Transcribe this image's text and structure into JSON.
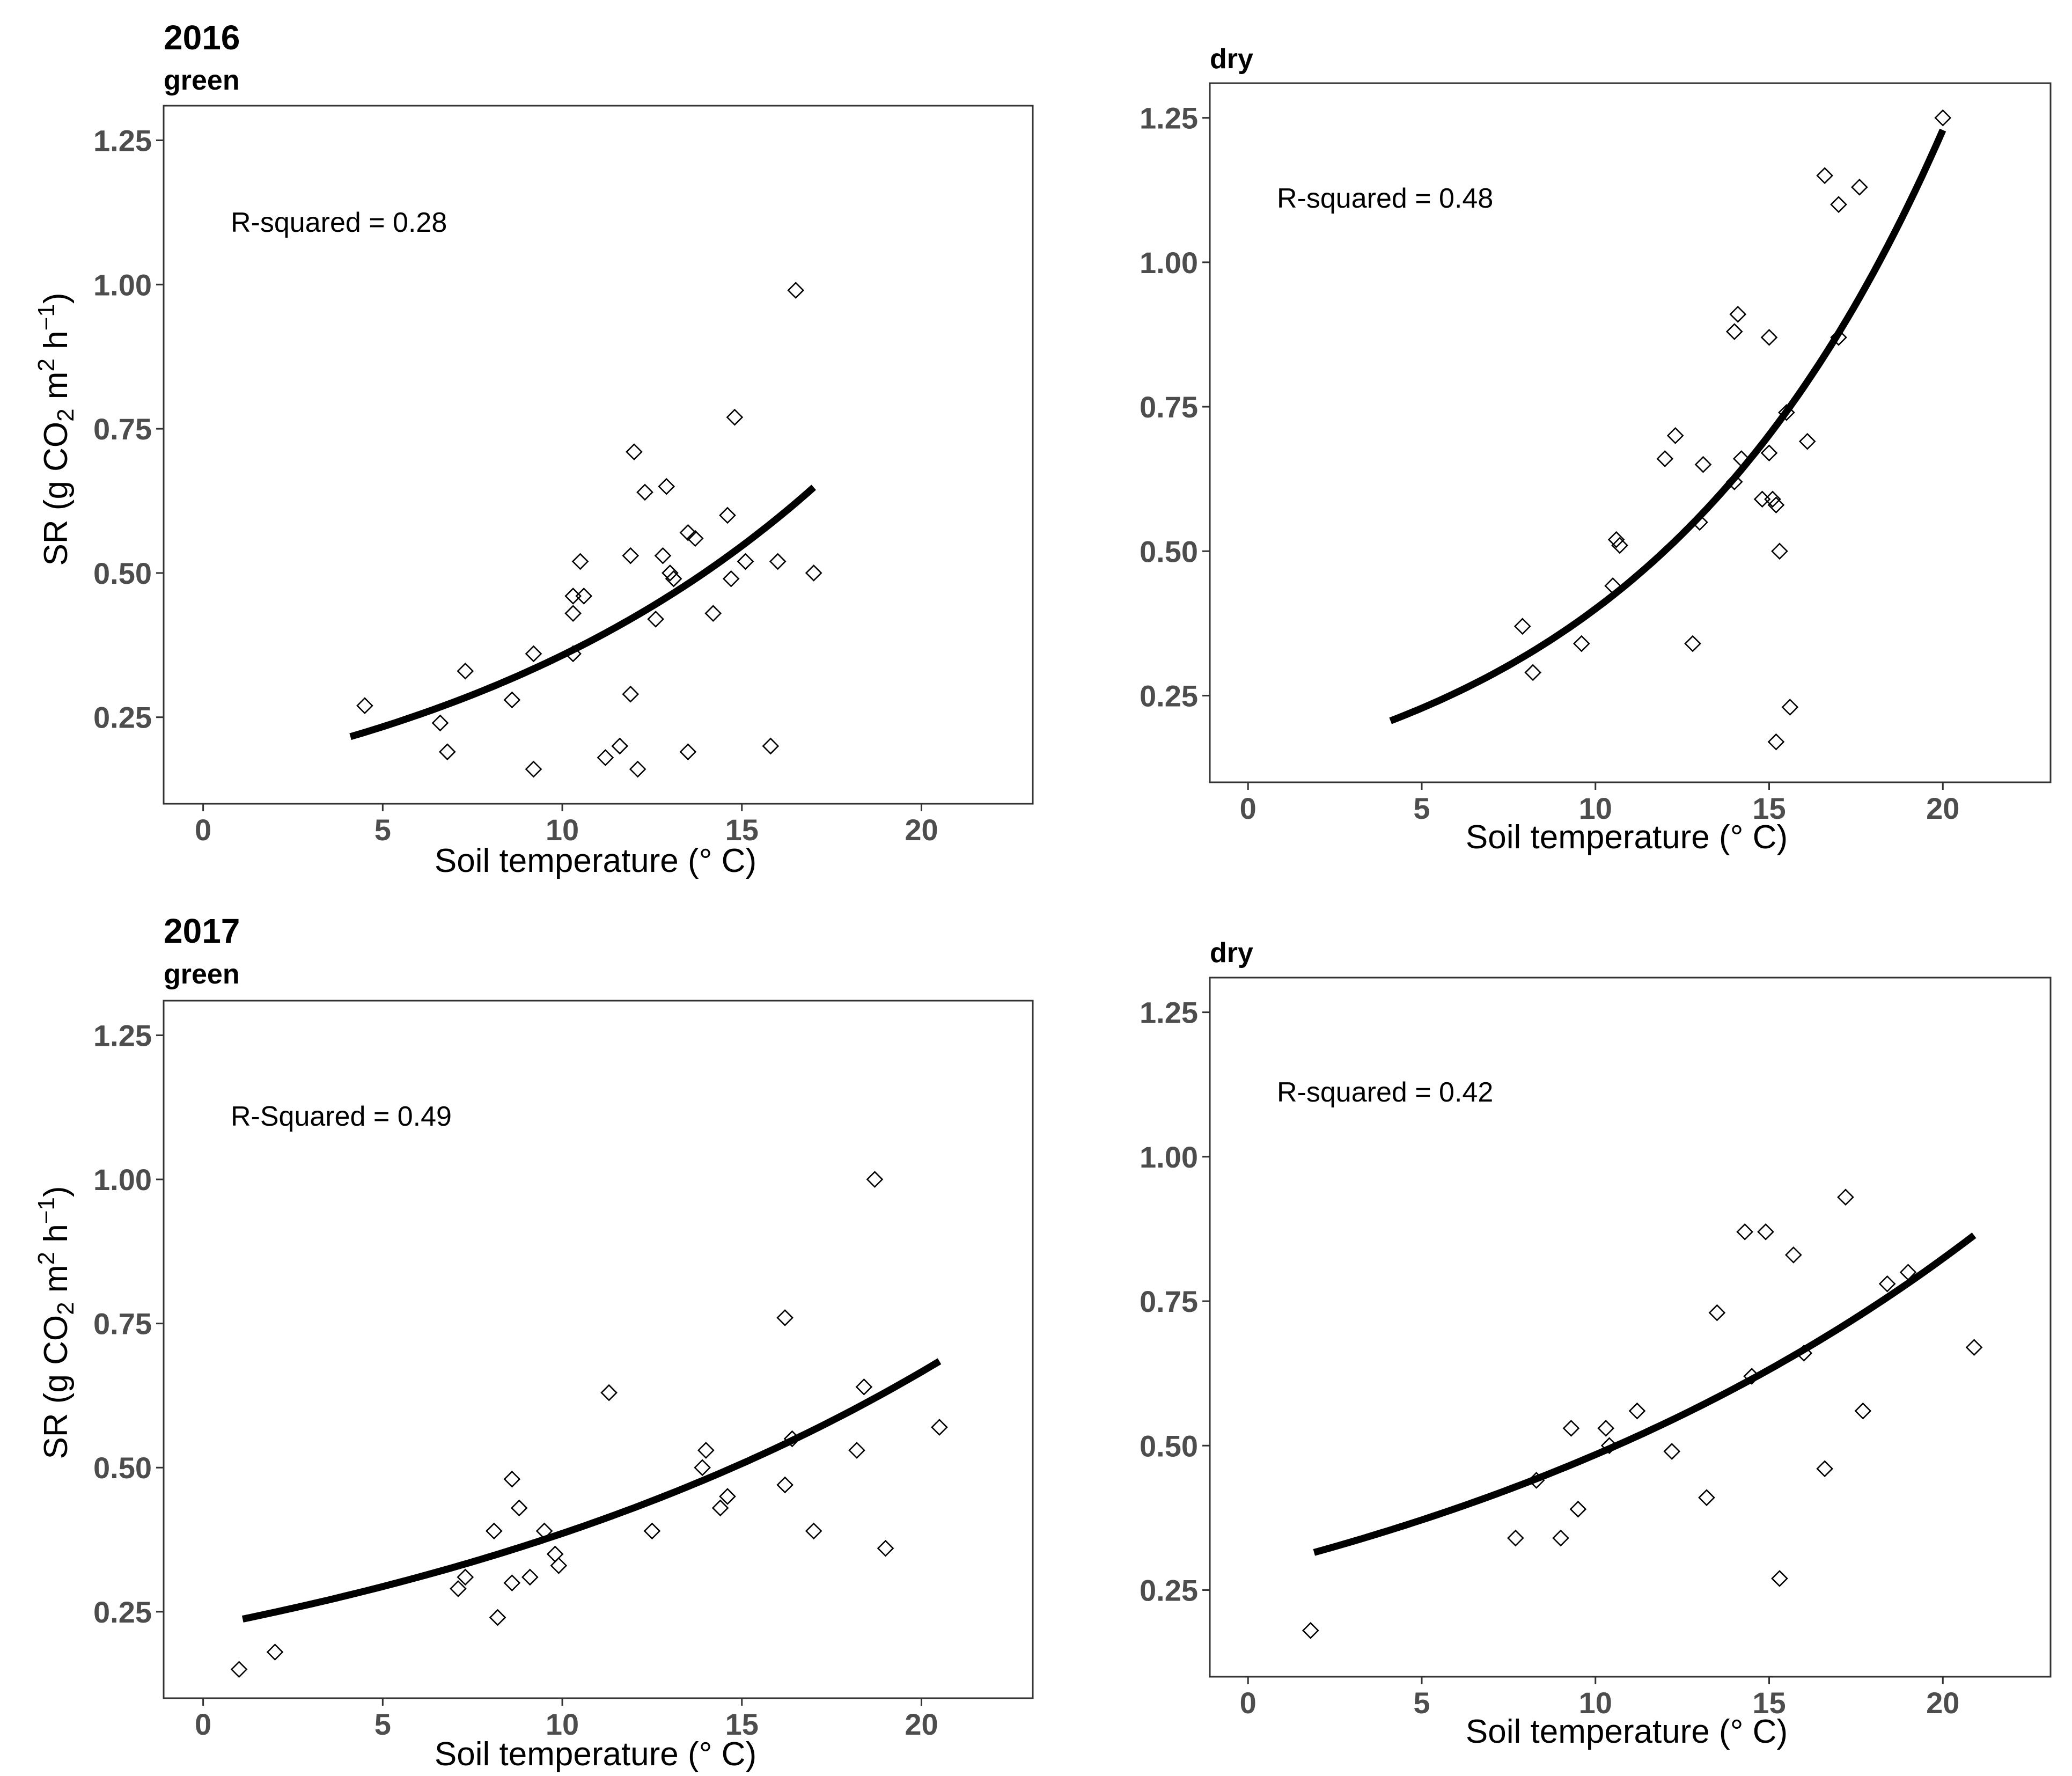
{
  "figure": {
    "ylabel": {
      "prefix": "SR (g CO",
      "sub": "2",
      "mid1": " m",
      "sup1": "2",
      "mid2": " h",
      "sup2": "−1",
      "suffix": ")"
    },
    "xlabel": "Soil temperature (° C)"
  },
  "chart_data": [
    {
      "type": "scatter",
      "year": "2016",
      "title": "green",
      "xlabel": "Soil temperature (° C)",
      "ylabel": "SR (g CO2 m2 h-1)",
      "xlim": [
        -1.1,
        23.1
      ],
      "ylim": [
        0.1,
        1.31
      ],
      "xticks": [
        0,
        5,
        10,
        15,
        20
      ],
      "xtick_labels": [
        "0",
        "5",
        "10",
        "15",
        "20"
      ],
      "yticks": [
        0.25,
        0.5,
        0.75,
        1.0,
        1.25
      ],
      "ytick_labels": [
        "0.25",
        "0.50",
        "0.75",
        "1.00",
        "1.25"
      ],
      "annotation": "R-squared = 0.28",
      "fit": {
        "a": 0.1526,
        "b": 0.0851,
        "x_range": [
          4.1,
          17.0
        ]
      },
      "points": [
        [
          4.5,
          0.27
        ],
        [
          6.6,
          0.24
        ],
        [
          6.8,
          0.19
        ],
        [
          7.3,
          0.33
        ],
        [
          8.6,
          0.28
        ],
        [
          9.2,
          0.16
        ],
        [
          9.2,
          0.36
        ],
        [
          10.3,
          0.36
        ],
        [
          10.3,
          0.46
        ],
        [
          10.3,
          0.43
        ],
        [
          10.5,
          0.52
        ],
        [
          10.6,
          0.46
        ],
        [
          11.2,
          0.18
        ],
        [
          11.6,
          0.2
        ],
        [
          11.9,
          0.29
        ],
        [
          11.9,
          0.53
        ],
        [
          12.0,
          0.71
        ],
        [
          12.1,
          0.16
        ],
        [
          12.3,
          0.64
        ],
        [
          12.6,
          0.42
        ],
        [
          12.8,
          0.53
        ],
        [
          12.9,
          0.65
        ],
        [
          13.0,
          0.5
        ],
        [
          13.1,
          0.49
        ],
        [
          13.5,
          0.19
        ],
        [
          13.5,
          0.57
        ],
        [
          13.7,
          0.56
        ],
        [
          14.2,
          0.43
        ],
        [
          14.6,
          0.6
        ],
        [
          14.7,
          0.49
        ],
        [
          14.8,
          0.77
        ],
        [
          15.1,
          0.52
        ],
        [
          15.8,
          0.2
        ],
        [
          16.0,
          0.52
        ],
        [
          16.5,
          0.99
        ],
        [
          17.0,
          0.5
        ]
      ]
    },
    {
      "type": "scatter",
      "title": "dry",
      "xlabel": "Soil temperature (° C)",
      "ylim": [
        0.1,
        1.31
      ],
      "xlim": [
        -1.1,
        23.1
      ],
      "xticks": [
        0,
        5,
        10,
        15,
        20
      ],
      "xtick_labels": [
        "0",
        "5",
        "10",
        "15",
        "20"
      ],
      "yticks": [
        0.25,
        0.5,
        0.75,
        1.0,
        1.25
      ],
      "ytick_labels": [
        "0.25",
        "0.50",
        "0.75",
        "1.00",
        "1.25"
      ],
      "annotation": "R-squared = 0.48",
      "fit": {
        "a": 0.1303,
        "b": 0.1122,
        "x_range": [
          4.1,
          20.0
        ]
      },
      "points": [
        [
          7.9,
          0.37
        ],
        [
          8.2,
          0.29
        ],
        [
          9.6,
          0.34
        ],
        [
          10.5,
          0.44
        ],
        [
          10.6,
          0.52
        ],
        [
          10.7,
          0.51
        ],
        [
          12.0,
          0.66
        ],
        [
          12.3,
          0.7
        ],
        [
          12.8,
          0.34
        ],
        [
          13.0,
          0.55
        ],
        [
          13.1,
          0.65
        ],
        [
          14.0,
          0.88
        ],
        [
          14.0,
          0.62
        ],
        [
          14.1,
          0.91
        ],
        [
          14.2,
          0.66
        ],
        [
          14.8,
          0.59
        ],
        [
          15.0,
          0.87
        ],
        [
          15.0,
          0.67
        ],
        [
          15.1,
          0.59
        ],
        [
          15.2,
          0.58
        ],
        [
          15.2,
          0.17
        ],
        [
          15.3,
          0.5
        ],
        [
          15.5,
          0.74
        ],
        [
          15.6,
          0.23
        ],
        [
          16.1,
          0.69
        ],
        [
          16.6,
          1.15
        ],
        [
          17.0,
          1.1
        ],
        [
          17.0,
          0.87
        ],
        [
          17.6,
          1.13
        ],
        [
          20.0,
          1.25
        ]
      ]
    },
    {
      "type": "scatter",
      "year": "2017",
      "title": "green",
      "xlabel": "Soil temperature (° C)",
      "ylabel": "SR (g CO2 m2 h-1)",
      "xlim": [
        -1.1,
        23.1
      ],
      "ylim": [
        0.1,
        1.31
      ],
      "xticks": [
        0,
        5,
        10,
        15,
        20
      ],
      "xtick_labels": [
        "0",
        "5",
        "10",
        "15",
        "20"
      ],
      "yticks": [
        0.25,
        0.5,
        0.75,
        1.0,
        1.25
      ],
      "ytick_labels": [
        "0.25",
        "0.50",
        "0.75",
        "1.00",
        "1.25"
      ],
      "annotation": "R-Squared = 0.49",
      "fit": {
        "a": 0.2235,
        "b": 0.0546,
        "x_range": [
          1.1,
          20.5
        ]
      },
      "points": [
        [
          1.0,
          0.15
        ],
        [
          2.0,
          0.18
        ],
        [
          7.1,
          0.29
        ],
        [
          7.3,
          0.31
        ],
        [
          8.1,
          0.39
        ],
        [
          8.2,
          0.24
        ],
        [
          8.6,
          0.3
        ],
        [
          8.6,
          0.48
        ],
        [
          8.8,
          0.43
        ],
        [
          9.1,
          0.31
        ],
        [
          9.5,
          0.39
        ],
        [
          9.8,
          0.35
        ],
        [
          9.9,
          0.33
        ],
        [
          11.3,
          0.63
        ],
        [
          12.5,
          0.39
        ],
        [
          13.9,
          0.5
        ],
        [
          14.0,
          0.53
        ],
        [
          14.4,
          0.43
        ],
        [
          14.6,
          0.45
        ],
        [
          16.2,
          0.76
        ],
        [
          16.2,
          0.47
        ],
        [
          16.4,
          0.55
        ],
        [
          17.0,
          0.39
        ],
        [
          18.2,
          0.53
        ],
        [
          18.4,
          0.64
        ],
        [
          18.7,
          1.0
        ],
        [
          19.0,
          0.36
        ],
        [
          20.5,
          0.57
        ]
      ]
    },
    {
      "type": "scatter",
      "title": "dry",
      "xlabel": "Soil temperature (° C)",
      "ylim": [
        0.1,
        1.31
      ],
      "xlim": [
        -1.1,
        23.1
      ],
      "xticks": [
        0,
        5,
        10,
        15,
        20
      ],
      "xtick_labels": [
        "0",
        "5",
        "10",
        "15",
        "20"
      ],
      "yticks": [
        0.25,
        0.5,
        0.75,
        1.0,
        1.25
      ],
      "ytick_labels": [
        "0.25",
        "0.50",
        "0.75",
        "1.00",
        "1.25"
      ],
      "annotation": "R-squared = 0.42",
      "fit": {
        "a": 0.2848,
        "b": 0.0531,
        "x_range": [
          1.9,
          20.9
        ]
      },
      "points": [
        [
          1.8,
          0.18
        ],
        [
          7.7,
          0.34
        ],
        [
          8.3,
          0.44
        ],
        [
          9.0,
          0.34
        ],
        [
          9.3,
          0.53
        ],
        [
          9.5,
          0.39
        ],
        [
          10.3,
          0.53
        ],
        [
          10.4,
          0.5
        ],
        [
          11.2,
          0.56
        ],
        [
          12.2,
          0.49
        ],
        [
          13.2,
          0.41
        ],
        [
          13.5,
          0.73
        ],
        [
          14.3,
          0.87
        ],
        [
          14.5,
          0.62
        ],
        [
          14.9,
          0.87
        ],
        [
          15.3,
          0.27
        ],
        [
          15.7,
          0.83
        ],
        [
          16.0,
          0.66
        ],
        [
          16.6,
          0.46
        ],
        [
          17.2,
          0.93
        ],
        [
          17.7,
          0.56
        ],
        [
          18.4,
          0.78
        ],
        [
          19.0,
          0.8
        ],
        [
          20.9,
          0.67
        ]
      ]
    }
  ]
}
